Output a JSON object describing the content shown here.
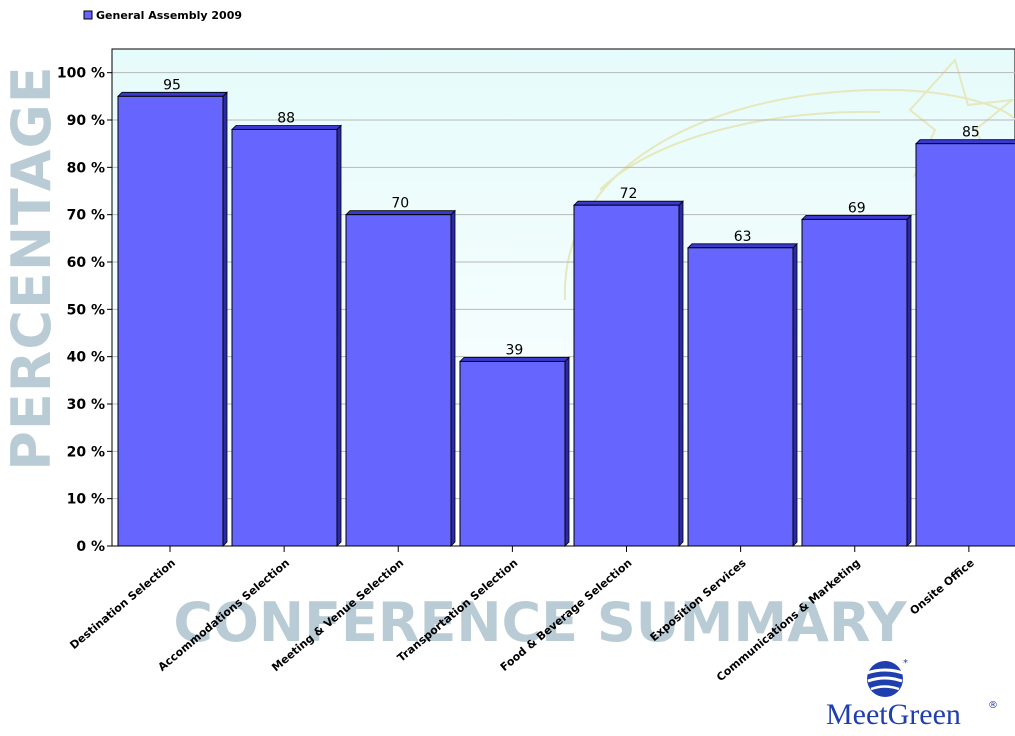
{
  "chart_data": {
    "type": "bar",
    "title": "",
    "legend": {
      "label": "General Assembly 2009",
      "position": "top-left",
      "color": "#6666ff"
    },
    "ylabel": "PERCENTAGE",
    "xlabel": "CONFERENCE SUMMARY",
    "ylim": [
      0,
      100
    ],
    "ytick_step": 10,
    "ytick_suffix": " %",
    "grid": true,
    "categories": [
      "Destination Selection",
      "Accommodations Selection",
      "Meeting & Venue Selection",
      "Transportation Selection",
      "Food & Beverage Selection",
      "Exposition Services",
      "Communications & Marketing",
      "Onsite Office"
    ],
    "series": [
      {
        "name": "General Assembly 2009",
        "values": [
          95,
          88,
          70,
          39,
          72,
          63,
          69,
          85
        ]
      }
    ],
    "colors": {
      "bar": "#6666ff",
      "bar_top": "#3a3ad0",
      "bar_side": "#2b2ba8",
      "plot_bg": "#eefcfc",
      "watermark": "#b9ccd6"
    }
  },
  "logo": {
    "text": "MeetGreen",
    "registered": "®"
  }
}
